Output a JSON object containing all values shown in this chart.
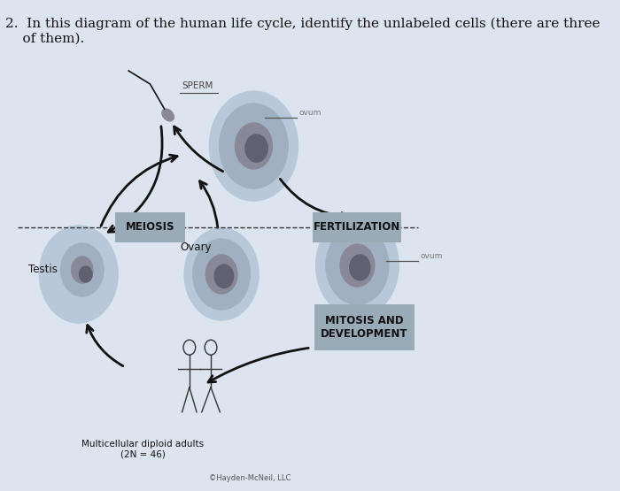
{
  "bg_color": "#dce4f0",
  "title_text": "2.  In this diagram of the human life cycle, identify the unlabeled cells (there are three\n    of them).",
  "title_fontsize": 11,
  "labels": {
    "meiosis": "MEIOSIS",
    "fertilization": "FERTILIZATION",
    "mitosis": "MITOSIS AND\nDEVELOPMENT",
    "testis": "Testis",
    "ovary": "Ovary",
    "adults": "Multicellular diploid adults\n(2N = 46)",
    "copyright": "©Hayden-McNeil, LLC",
    "sperm_handwritten": "SPERM"
  },
  "cell_color_outer": "#b8c8d8",
  "cell_color_inner": "#a0b0c0",
  "cell_nucleus_color": "#888898",
  "cell_nucleus_dark": "#606070",
  "label_box_color": "#9aabb8",
  "label_text_color": "#111111",
  "arrow_color": "#111111",
  "dashed_line_color": "#333333",
  "human_outline": "#333333"
}
